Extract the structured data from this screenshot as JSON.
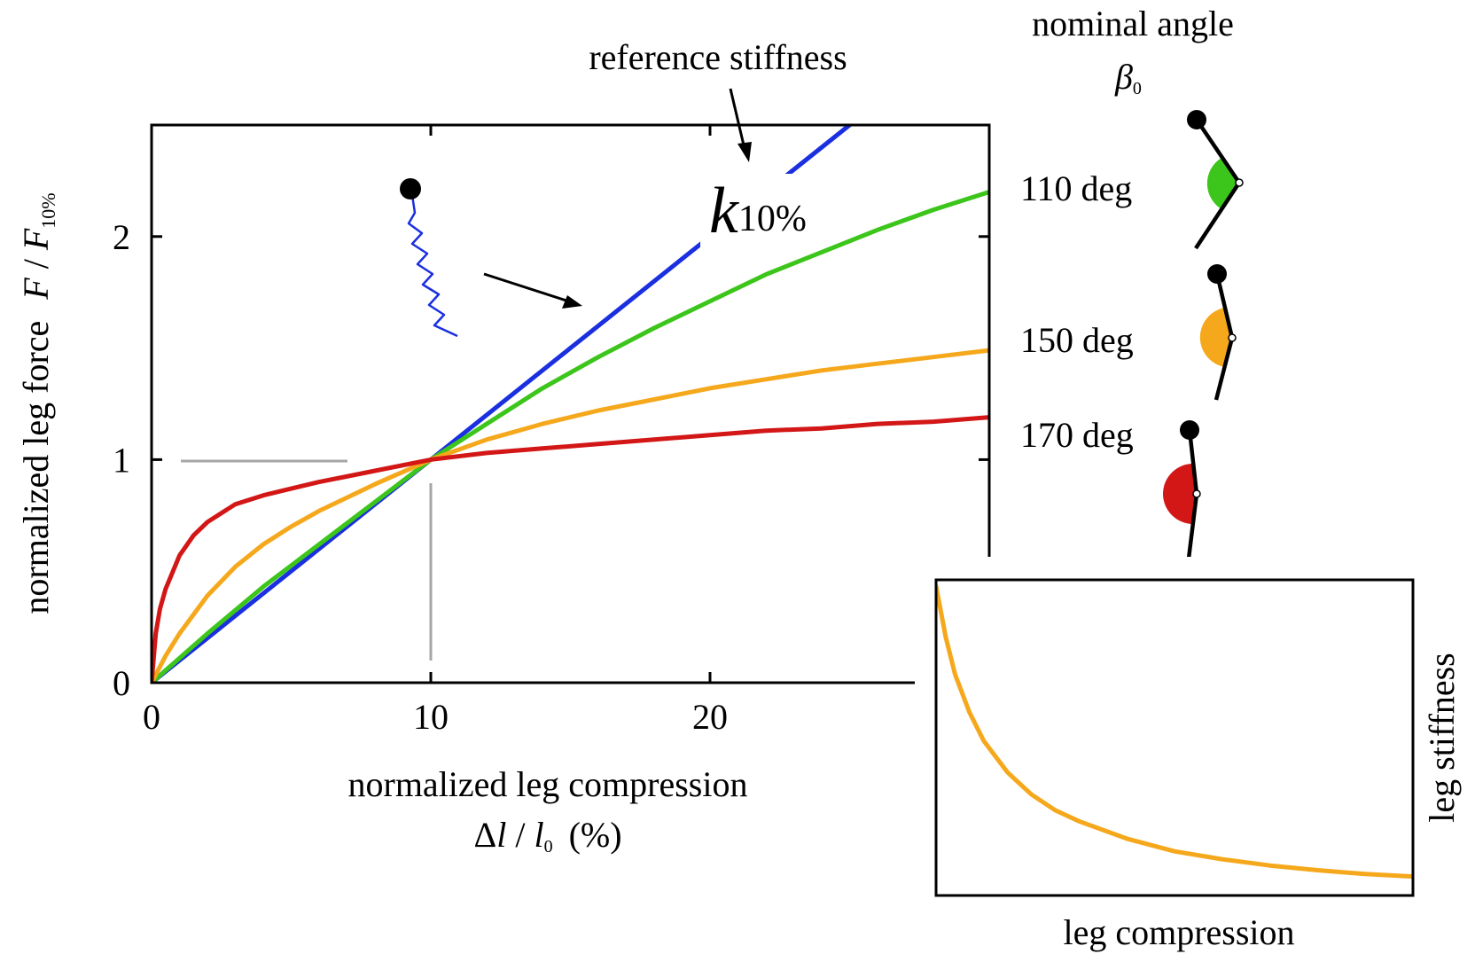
{
  "chart_data": [
    {
      "type": "line",
      "xlabel": "normalized leg compression",
      "xlabel_math": {
        "delta": "Δ",
        "l": "l",
        "slash": " / ",
        "l0": "l",
        "sub": "0",
        "unit": "(%)"
      },
      "ylabel": "normalized leg force",
      "ylabel_math": {
        "F": "F",
        "slash": " / ",
        "F10": "F",
        "sub": "10%"
      },
      "xlim": [
        0,
        30
      ],
      "ylim": [
        0,
        2.5
      ],
      "x_ticks": [
        0,
        10,
        20
      ],
      "x_tick_labels": [
        "0",
        "10",
        "20"
      ],
      "y_ticks": [
        0,
        1,
        2
      ],
      "y_tick_labels": [
        "0",
        "1",
        "2"
      ],
      "reference_label": "reference stiffness",
      "k_label": {
        "k": "k",
        "sub": "10%"
      },
      "series": [
        {
          "key": "reference",
          "color": "#1a2fe0",
          "x": [
            0,
            5,
            10,
            15,
            20,
            25,
            25.2
          ],
          "y": [
            0,
            0.5,
            1.0,
            1.5,
            2.0,
            2.5,
            2.52
          ]
        },
        {
          "key": "110",
          "color": "#3cc51a",
          "x": [
            0,
            2,
            4,
            6,
            8,
            10,
            12,
            14,
            16,
            18,
            20,
            22,
            24,
            26,
            28,
            30
          ],
          "y": [
            0,
            0.22,
            0.43,
            0.62,
            0.81,
            1.0,
            1.16,
            1.32,
            1.46,
            1.59,
            1.71,
            1.83,
            1.93,
            2.03,
            2.12,
            2.2
          ]
        },
        {
          "key": "150",
          "color": "#f5a81c",
          "x": [
            0,
            0.5,
            1,
            2,
            3,
            4,
            5,
            6,
            8,
            10,
            12,
            14,
            16,
            18,
            20,
            22,
            24,
            26,
            28,
            30
          ],
          "y": [
            0,
            0.12,
            0.22,
            0.39,
            0.52,
            0.62,
            0.7,
            0.77,
            0.89,
            1.0,
            1.09,
            1.16,
            1.22,
            1.27,
            1.32,
            1.36,
            1.4,
            1.43,
            1.46,
            1.49
          ]
        },
        {
          "key": "170",
          "color": "#d31616",
          "x": [
            0,
            0.15,
            0.3,
            0.5,
            1,
            1.5,
            2,
            3,
            4,
            5,
            6,
            8,
            10,
            12,
            14,
            16,
            18,
            20,
            22,
            24,
            26,
            28,
            30
          ],
          "y": [
            0,
            0.22,
            0.33,
            0.42,
            0.57,
            0.66,
            0.72,
            0.8,
            0.84,
            0.87,
            0.9,
            0.95,
            1.0,
            1.03,
            1.05,
            1.07,
            1.09,
            1.11,
            1.13,
            1.14,
            1.16,
            1.17,
            1.19
          ]
        }
      ]
    },
    {
      "type": "line",
      "xlabel": "leg compression",
      "ylabel": "leg stiffness",
      "xlim": [
        0,
        1
      ],
      "ylim": [
        0,
        1
      ],
      "series": [
        {
          "key": "150",
          "color": "#f5a81c",
          "x": [
            0,
            0.02,
            0.04,
            0.07,
            0.1,
            0.15,
            0.2,
            0.25,
            0.3,
            0.4,
            0.5,
            0.6,
            0.7,
            0.8,
            0.9,
            1.0
          ],
          "y": [
            0.98,
            0.82,
            0.7,
            0.58,
            0.49,
            0.39,
            0.32,
            0.27,
            0.235,
            0.18,
            0.14,
            0.115,
            0.095,
            0.08,
            0.068,
            0.06
          ]
        }
      ]
    }
  ],
  "legend": {
    "title": "nominal angle",
    "symbol": "β",
    "symbol_sub": "0",
    "entries": [
      {
        "label": "110 deg",
        "color": "#3cc51a"
      },
      {
        "label": "150 deg",
        "color": "#f5a81c"
      },
      {
        "label": "170 deg",
        "color": "#d31616"
      }
    ]
  }
}
